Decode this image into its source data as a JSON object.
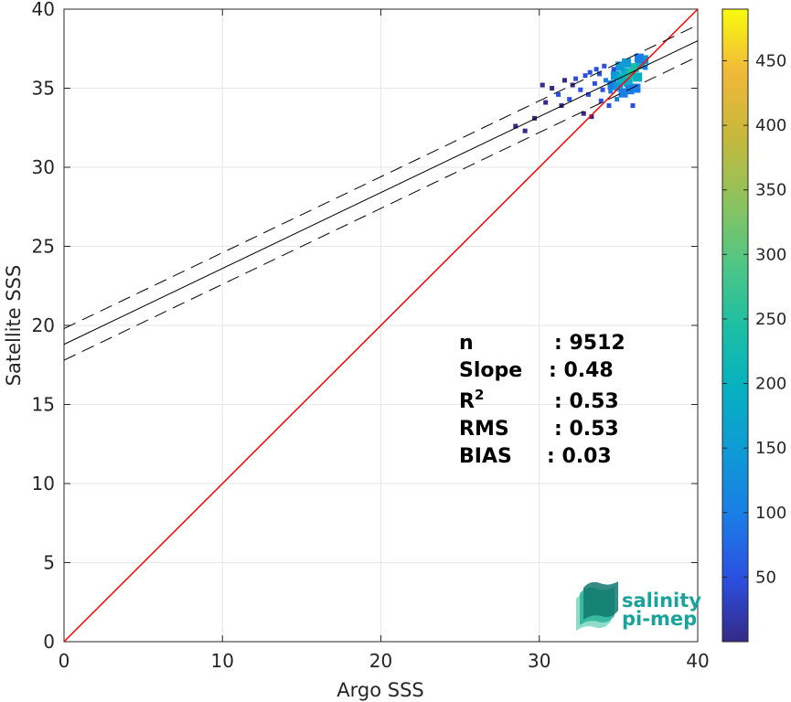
{
  "chart_data": {
    "type": "scatter",
    "xlabel": "Argo SSS",
    "ylabel": "Satellite SSS",
    "xlim": [
      0,
      40
    ],
    "ylim": [
      0,
      40
    ],
    "xticks": [
      "0",
      "10",
      "20",
      "30",
      "40"
    ],
    "yticks": [
      "0",
      "5",
      "10",
      "15",
      "20",
      "25",
      "30",
      "35",
      "40"
    ],
    "grid": true,
    "identity_line": {
      "color": "#ff0000",
      "x": [
        0,
        40
      ],
      "y": [
        0,
        40
      ]
    },
    "regression_line": {
      "intercept": 18.8,
      "slope": 0.48,
      "color": "#000000"
    },
    "confidence_lines": {
      "offsets": [
        -1.0,
        1.0
      ],
      "style": "dashed"
    },
    "density_points": [
      {
        "x": 28.5,
        "y": 32.6,
        "v": 5
      },
      {
        "x": 29.1,
        "y": 32.3,
        "v": 5
      },
      {
        "x": 29.7,
        "y": 33.1,
        "v": 8
      },
      {
        "x": 30.2,
        "y": 35.2,
        "v": 8
      },
      {
        "x": 30.8,
        "y": 35.0,
        "v": 10
      },
      {
        "x": 31.2,
        "y": 34.6,
        "v": 12
      },
      {
        "x": 31.6,
        "y": 35.5,
        "v": 10
      },
      {
        "x": 31.9,
        "y": 34.3,
        "v": 12
      },
      {
        "x": 32.3,
        "y": 35.6,
        "v": 14
      },
      {
        "x": 32.6,
        "y": 34.9,
        "v": 15
      },
      {
        "x": 32.9,
        "y": 35.8,
        "v": 14
      },
      {
        "x": 33.1,
        "y": 34.6,
        "v": 16
      },
      {
        "x": 33.3,
        "y": 33.2,
        "v": 8
      },
      {
        "x": 33.5,
        "y": 35.3,
        "v": 20
      },
      {
        "x": 33.8,
        "y": 35.9,
        "v": 24
      },
      {
        "x": 34.0,
        "y": 34.9,
        "v": 28
      },
      {
        "x": 34.2,
        "y": 35.5,
        "v": 35
      },
      {
        "x": 34.4,
        "y": 33.9,
        "v": 18
      },
      {
        "x": 34.6,
        "y": 35.2,
        "v": 45
      },
      {
        "x": 34.8,
        "y": 35.8,
        "v": 60
      },
      {
        "x": 35.0,
        "y": 35.1,
        "v": 70
      },
      {
        "x": 35.2,
        "y": 35.6,
        "v": 85
      },
      {
        "x": 35.4,
        "y": 36.0,
        "v": 95
      },
      {
        "x": 35.6,
        "y": 35.4,
        "v": 100
      },
      {
        "x": 35.8,
        "y": 35.9,
        "v": 110
      },
      {
        "x": 36.0,
        "y": 36.3,
        "v": 105
      },
      {
        "x": 36.2,
        "y": 35.7,
        "v": 90
      },
      {
        "x": 36.4,
        "y": 36.5,
        "v": 80
      },
      {
        "x": 36.6,
        "y": 36.8,
        "v": 60
      },
      {
        "x": 34.9,
        "y": 34.3,
        "v": 40
      },
      {
        "x": 35.3,
        "y": 34.7,
        "v": 55
      },
      {
        "x": 35.7,
        "y": 34.9,
        "v": 50
      },
      {
        "x": 36.1,
        "y": 35.0,
        "v": 45
      },
      {
        "x": 35.9,
        "y": 33.9,
        "v": 15
      },
      {
        "x": 34.1,
        "y": 36.4,
        "v": 20
      },
      {
        "x": 33.6,
        "y": 36.2,
        "v": 12
      },
      {
        "x": 32.8,
        "y": 33.4,
        "v": 6
      },
      {
        "x": 31.4,
        "y": 33.9,
        "v": 6
      },
      {
        "x": 30.4,
        "y": 34.1,
        "v": 6
      },
      {
        "x": 35.1,
        "y": 36.4,
        "v": 60
      },
      {
        "x": 36.3,
        "y": 36.9,
        "v": 50
      },
      {
        "x": 36.7,
        "y": 36.3,
        "v": 40
      },
      {
        "x": 34.5,
        "y": 34.8,
        "v": 35
      },
      {
        "x": 33.9,
        "y": 34.2,
        "v": 20
      },
      {
        "x": 32.1,
        "y": 35.2,
        "v": 10
      },
      {
        "x": 33.2,
        "y": 36.0,
        "v": 12
      },
      {
        "x": 34.7,
        "y": 36.2,
        "v": 30
      },
      {
        "x": 35.5,
        "y": 36.6,
        "v": 70
      }
    ],
    "colorbar": {
      "min": 0,
      "max": 490,
      "ticks": [
        "50",
        "100",
        "150",
        "200",
        "250",
        "300",
        "350",
        "400",
        "450"
      ],
      "colormap": "parula"
    },
    "stats": [
      {
        "label": "n",
        "value": ": 9512"
      },
      {
        "label": "Slope",
        "value": ": 0.48"
      },
      {
        "label": "R",
        "sup": "2",
        "value": ": 0.53"
      },
      {
        "label": "RMS",
        "value": ": 0.53"
      },
      {
        "label": "BIAS",
        "value": ": 0.03"
      }
    ],
    "logo": {
      "line1": "salinity",
      "line2": "pi-mep"
    }
  }
}
